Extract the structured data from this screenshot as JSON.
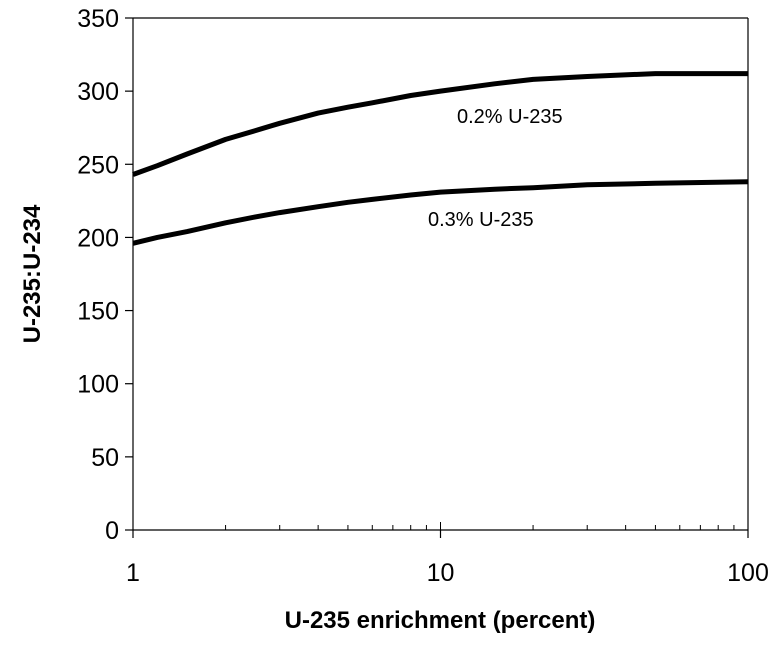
{
  "chart_data": {
    "type": "line",
    "title": "",
    "xlabel": "U-235 enrichment (percent)",
    "ylabel": "U-235:U-234",
    "xscale": "log",
    "xlim": [
      1,
      100
    ],
    "ylim": [
      0,
      350
    ],
    "xticks": [
      1,
      10,
      100
    ],
    "yticks": [
      0,
      50,
      100,
      150,
      200,
      250,
      300,
      350
    ],
    "grid": false,
    "legend": "none",
    "series": [
      {
        "name": "0.2% U-235",
        "color": "#000000",
        "x": [
          1,
          1.2,
          1.5,
          2,
          2.5,
          3,
          4,
          5,
          6,
          8,
          10,
          15,
          20,
          30,
          50,
          100
        ],
        "y": [
          243,
          249,
          257,
          267,
          273,
          278,
          285,
          289,
          292,
          297,
          300,
          305,
          308,
          310,
          312,
          312
        ]
      },
      {
        "name": "0.3% U-235",
        "color": "#000000",
        "x": [
          1,
          1.2,
          1.5,
          2,
          2.5,
          3,
          4,
          5,
          6,
          8,
          10,
          15,
          20,
          30,
          50,
          100
        ],
        "y": [
          196,
          200,
          204,
          210,
          214,
          217,
          221,
          224,
          226,
          229,
          231,
          233,
          234,
          236,
          237,
          238
        ]
      }
    ]
  }
}
